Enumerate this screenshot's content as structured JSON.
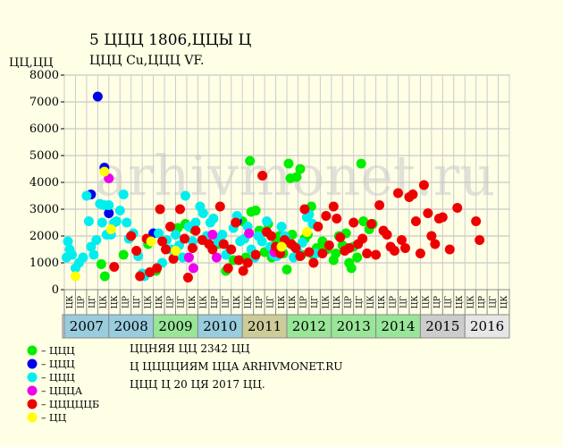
{
  "chart_data": {
    "type": "scatter",
    "title": "5 ЦЦЦ 1806,ЦЦЫ Ц",
    "subtitle": "ЦЦЦ Cu,ЦЦЦ VF.",
    "ylabel": "ЦЦ,ЦЦ",
    "ylim": [
      0,
      8000
    ],
    "yticks": [
      0,
      1000,
      2000,
      3000,
      4000,
      5000,
      6000,
      7000,
      8000
    ],
    "grid": true,
    "watermark": "arhivmonet.ru",
    "years": [
      "2007",
      "2008",
      "2009",
      "2010",
      "2011",
      "2012",
      "2013",
      "2014",
      "2015",
      "2016"
    ],
    "year_colors": [
      "#99ccdd",
      "#99ccdd",
      "#99e699",
      "#99ccdd",
      "#cccc99",
      "#99e699",
      "#99e699",
      "#99e699",
      "#cccccc",
      "#e6e6e6"
    ],
    "quarter_labels": [
      "ЦК",
      "ЦР",
      "ЦГ",
      "ЦК"
    ],
    "series": [
      {
        "name": "– ЦЦЦ",
        "color": "#00ee00",
        "points": [
          [
            2007.83,
            950
          ],
          [
            2007.91,
            500
          ],
          [
            2008.33,
            1300
          ],
          [
            2008.88,
            1700
          ],
          [
            2009.06,
            700
          ],
          [
            2009.55,
            2300
          ],
          [
            2009.72,
            2450
          ],
          [
            2009.9,
            2250
          ],
          [
            2010.17,
            1900
          ],
          [
            2010.45,
            1700
          ],
          [
            2010.63,
            700
          ],
          [
            2010.8,
            1100
          ],
          [
            2011.0,
            2550
          ],
          [
            2011.08,
            1200
          ],
          [
            2011.17,
            4800
          ],
          [
            2011.2,
            2900
          ],
          [
            2011.3,
            2950
          ],
          [
            2011.38,
            2200
          ],
          [
            2011.45,
            2150
          ],
          [
            2011.5,
            1400
          ],
          [
            2011.58,
            2450
          ],
          [
            2011.66,
            1200
          ],
          [
            2011.75,
            1700
          ],
          [
            2011.83,
            2000
          ],
          [
            2011.92,
            1350
          ],
          [
            2012.0,
            750
          ],
          [
            2012.04,
            4700
          ],
          [
            2012.08,
            4150
          ],
          [
            2012.12,
            2050
          ],
          [
            2012.17,
            1600
          ],
          [
            2012.22,
            4200
          ],
          [
            2012.3,
            4500
          ],
          [
            2012.33,
            1300
          ],
          [
            2012.4,
            1900
          ],
          [
            2012.47,
            2050
          ],
          [
            2012.55,
            3100
          ],
          [
            2012.6,
            1300
          ],
          [
            2012.67,
            1550
          ],
          [
            2012.73,
            1500
          ],
          [
            2012.8,
            1800
          ],
          [
            2012.9,
            1500
          ],
          [
            2013.05,
            1100
          ],
          [
            2013.1,
            1350
          ],
          [
            2013.17,
            2000
          ],
          [
            2013.25,
            1650
          ],
          [
            2013.33,
            2100
          ],
          [
            2013.4,
            1000
          ],
          [
            2013.45,
            800
          ],
          [
            2013.5,
            1600
          ],
          [
            2013.58,
            1200
          ],
          [
            2013.67,
            4700
          ],
          [
            2013.72,
            2550
          ],
          [
            2013.85,
            2250
          ],
          [
            2013.93,
            2450
          ]
        ]
      },
      {
        "name": "– ЦЦЦ",
        "color": "#0000ee",
        "points": [
          [
            2007.6,
            3550
          ],
          [
            2007.75,
            7200
          ],
          [
            2007.9,
            4550
          ],
          [
            2008.0,
            2850
          ],
          [
            2009.0,
            2100
          ],
          [
            2010.88,
            2550
          ]
        ]
      },
      {
        "name": "– ЦЦЦ",
        "color": "#00eeee",
        "points": [
          [
            2007.05,
            1200
          ],
          [
            2007.08,
            1800
          ],
          [
            2007.12,
            1500
          ],
          [
            2007.17,
            1300
          ],
          [
            2007.25,
            800
          ],
          [
            2007.33,
            1000
          ],
          [
            2007.42,
            1200
          ],
          [
            2007.5,
            3500
          ],
          [
            2007.55,
            2550
          ],
          [
            2007.6,
            1600
          ],
          [
            2007.66,
            1300
          ],
          [
            2007.72,
            1850
          ],
          [
            2007.8,
            3200
          ],
          [
            2007.85,
            2500
          ],
          [
            2007.9,
            3150
          ],
          [
            2007.95,
            2050
          ],
          [
            2008.0,
            3150
          ],
          [
            2008.05,
            2050
          ],
          [
            2008.12,
            2500
          ],
          [
            2008.17,
            2550
          ],
          [
            2008.25,
            2950
          ],
          [
            2008.33,
            3550
          ],
          [
            2008.4,
            2500
          ],
          [
            2008.45,
            1900
          ],
          [
            2008.55,
            2100
          ],
          [
            2008.66,
            1250
          ],
          [
            2008.75,
            600
          ],
          [
            2008.8,
            500
          ],
          [
            2009.12,
            2100
          ],
          [
            2009.2,
            1000
          ],
          [
            2009.3,
            1850
          ],
          [
            2009.4,
            1500
          ],
          [
            2009.5,
            2050
          ],
          [
            2009.58,
            1650
          ],
          [
            2009.66,
            1200
          ],
          [
            2009.72,
            3500
          ],
          [
            2009.8,
            2350
          ],
          [
            2009.88,
            1800
          ],
          [
            2009.95,
            2500
          ],
          [
            2010.05,
            3100
          ],
          [
            2010.12,
            2850
          ],
          [
            2010.2,
            2000
          ],
          [
            2010.28,
            2500
          ],
          [
            2010.35,
            2650
          ],
          [
            2010.45,
            1800
          ],
          [
            2010.55,
            2050
          ],
          [
            2010.63,
            1300
          ],
          [
            2010.72,
            1500
          ],
          [
            2010.8,
            2300
          ],
          [
            2010.88,
            2750
          ],
          [
            2010.95,
            1800
          ],
          [
            2011.05,
            1900
          ],
          [
            2011.12,
            2350
          ],
          [
            2011.2,
            1500
          ],
          [
            2011.28,
            1200
          ],
          [
            2011.36,
            2000
          ],
          [
            2011.44,
            1800
          ],
          [
            2011.55,
            2550
          ],
          [
            2011.63,
            1600
          ],
          [
            2011.7,
            1300
          ],
          [
            2011.78,
            1250
          ],
          [
            2011.88,
            2350
          ],
          [
            2011.95,
            2000
          ],
          [
            2012.05,
            1750
          ],
          [
            2012.15,
            1200
          ],
          [
            2012.25,
            1400
          ],
          [
            2012.35,
            1750
          ],
          [
            2012.45,
            2700
          ],
          [
            2012.5,
            2800
          ],
          [
            2012.58,
            2450
          ],
          [
            2012.65,
            1350
          ]
        ]
      },
      {
        "name": "– ЦЦЦА",
        "color": "#ee00ee",
        "points": [
          [
            2008.0,
            4150
          ],
          [
            2009.8,
            1200
          ],
          [
            2009.9,
            800
          ],
          [
            2010.33,
            2050
          ],
          [
            2010.42,
            1200
          ],
          [
            2011.15,
            2100
          ],
          [
            2011.72,
            1400
          ]
        ]
      },
      {
        "name": "– ЦЦЦЦЦБ",
        "color": "#ee0000",
        "points": [
          [
            2008.12,
            850
          ],
          [
            2008.5,
            2000
          ],
          [
            2008.62,
            1450
          ],
          [
            2008.7,
            500
          ],
          [
            2008.85,
            1900
          ],
          [
            2008.92,
            650
          ],
          [
            2009.08,
            800
          ],
          [
            2009.15,
            3000
          ],
          [
            2009.2,
            1800
          ],
          [
            2009.28,
            1500
          ],
          [
            2009.38,
            2350
          ],
          [
            2009.45,
            1150
          ],
          [
            2009.6,
            3000
          ],
          [
            2009.7,
            1900
          ],
          [
            2009.78,
            450
          ],
          [
            2009.88,
            1550
          ],
          [
            2009.95,
            2200
          ],
          [
            2010.1,
            1850
          ],
          [
            2010.25,
            1700
          ],
          [
            2010.33,
            1500
          ],
          [
            2010.5,
            3100
          ],
          [
            2010.58,
            1700
          ],
          [
            2010.68,
            800
          ],
          [
            2010.75,
            1500
          ],
          [
            2010.85,
            2500
          ],
          [
            2010.92,
            1100
          ],
          [
            2011.02,
            700
          ],
          [
            2011.12,
            1000
          ],
          [
            2011.3,
            1300
          ],
          [
            2011.45,
            4250
          ],
          [
            2011.55,
            2150
          ],
          [
            2011.65,
            2000
          ],
          [
            2011.75,
            1600
          ],
          [
            2011.85,
            1350
          ],
          [
            2011.95,
            1850
          ],
          [
            2012.1,
            1700
          ],
          [
            2012.2,
            1550
          ],
          [
            2012.3,
            1250
          ],
          [
            2012.4,
            3000
          ],
          [
            2012.5,
            1400
          ],
          [
            2012.6,
            1000
          ],
          [
            2012.7,
            2350
          ],
          [
            2012.8,
            1350
          ],
          [
            2012.88,
            2750
          ],
          [
            2012.95,
            1650
          ],
          [
            2013.05,
            3100
          ],
          [
            2013.12,
            2650
          ],
          [
            2013.2,
            1950
          ],
          [
            2013.3,
            1450
          ],
          [
            2013.4,
            1550
          ],
          [
            2013.5,
            2500
          ],
          [
            2013.6,
            1700
          ],
          [
            2013.7,
            1900
          ],
          [
            2013.8,
            1350
          ],
          [
            2013.9,
            2450
          ],
          [
            2014.0,
            1300
          ],
          [
            2014.08,
            3150
          ],
          [
            2014.17,
            2200
          ],
          [
            2014.25,
            2050
          ],
          [
            2014.33,
            1600
          ],
          [
            2014.42,
            1450
          ],
          [
            2014.5,
            3600
          ],
          [
            2014.58,
            1850
          ],
          [
            2014.66,
            1550
          ],
          [
            2014.75,
            3450
          ],
          [
            2014.83,
            3550
          ],
          [
            2014.9,
            2550
          ],
          [
            2015.0,
            1350
          ],
          [
            2015.08,
            3900
          ],
          [
            2015.17,
            2850
          ],
          [
            2015.25,
            2000
          ],
          [
            2015.33,
            1700
          ],
          [
            2015.42,
            2650
          ],
          [
            2015.5,
            2700
          ],
          [
            2015.66,
            1500
          ],
          [
            2015.83,
            3050
          ],
          [
            2016.25,
            2550
          ],
          [
            2016.33,
            1850
          ]
        ]
      },
      {
        "name": "– ЦЦ",
        "color": "#ffff00",
        "points": [
          [
            2007.25,
            500
          ],
          [
            2007.9,
            4400
          ],
          [
            2008.05,
            2250
          ],
          [
            2008.95,
            1800
          ],
          [
            2009.5,
            1450
          ],
          [
            2011.88,
            1600
          ],
          [
            2012.45,
            2150
          ]
        ]
      }
    ]
  },
  "info": {
    "line1": "ЦЦНЯЯ ЦЦ 2342 ЦЦ",
    "line2": "Ц ЦЦЦЦИЯМ ЦЦА ARHIVMONET.RU",
    "line3": "ЦЦЦ Ц 20 ЦЯ 2017 ЦЦ."
  }
}
